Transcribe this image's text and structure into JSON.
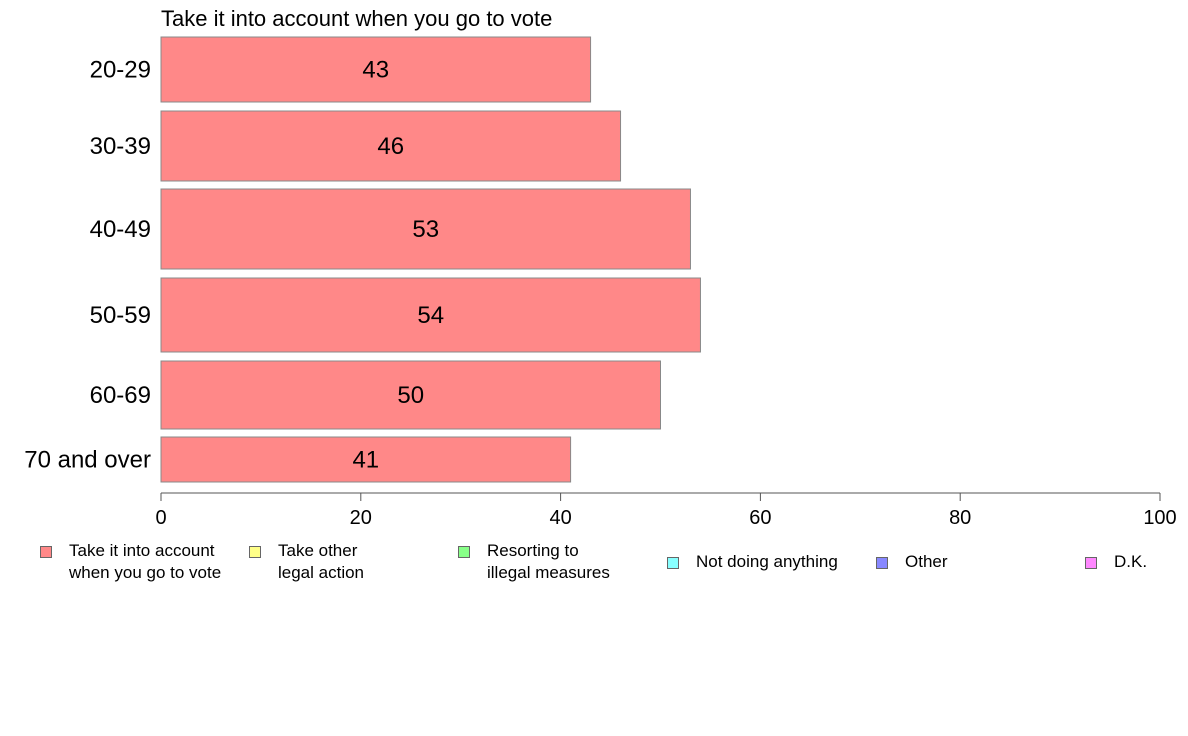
{
  "chart_data": {
    "type": "bar",
    "orientation": "horizontal",
    "title": "Take it into account when you go to vote",
    "categories": [
      "20-29",
      "30-39",
      "40-49",
      "50-59",
      "60-69",
      "70 and over"
    ],
    "series": [
      {
        "name": "Take it into account when you go to vote",
        "values": [
          43,
          46,
          53,
          54,
          50,
          41
        ],
        "color": "#ff8888"
      }
    ],
    "xlim": [
      0,
      100
    ],
    "xticks": [
      0,
      20,
      40,
      60,
      80,
      100
    ],
    "grid": false,
    "legend_position": "bottom"
  },
  "legend": {
    "items": [
      {
        "label": "Take it into account\nwhen you go to vote",
        "color": "#ff8888"
      },
      {
        "label": "Take other\nlegal action",
        "color": "#ffff88"
      },
      {
        "label": "Resorting to\nillegal measures",
        "color": "#88ff88"
      },
      {
        "label": "Not doing anything",
        "color": "#88ffff"
      },
      {
        "label": "Other",
        "color": "#8888ff"
      },
      {
        "label": "D.K.",
        "color": "#ff88ff"
      }
    ]
  }
}
